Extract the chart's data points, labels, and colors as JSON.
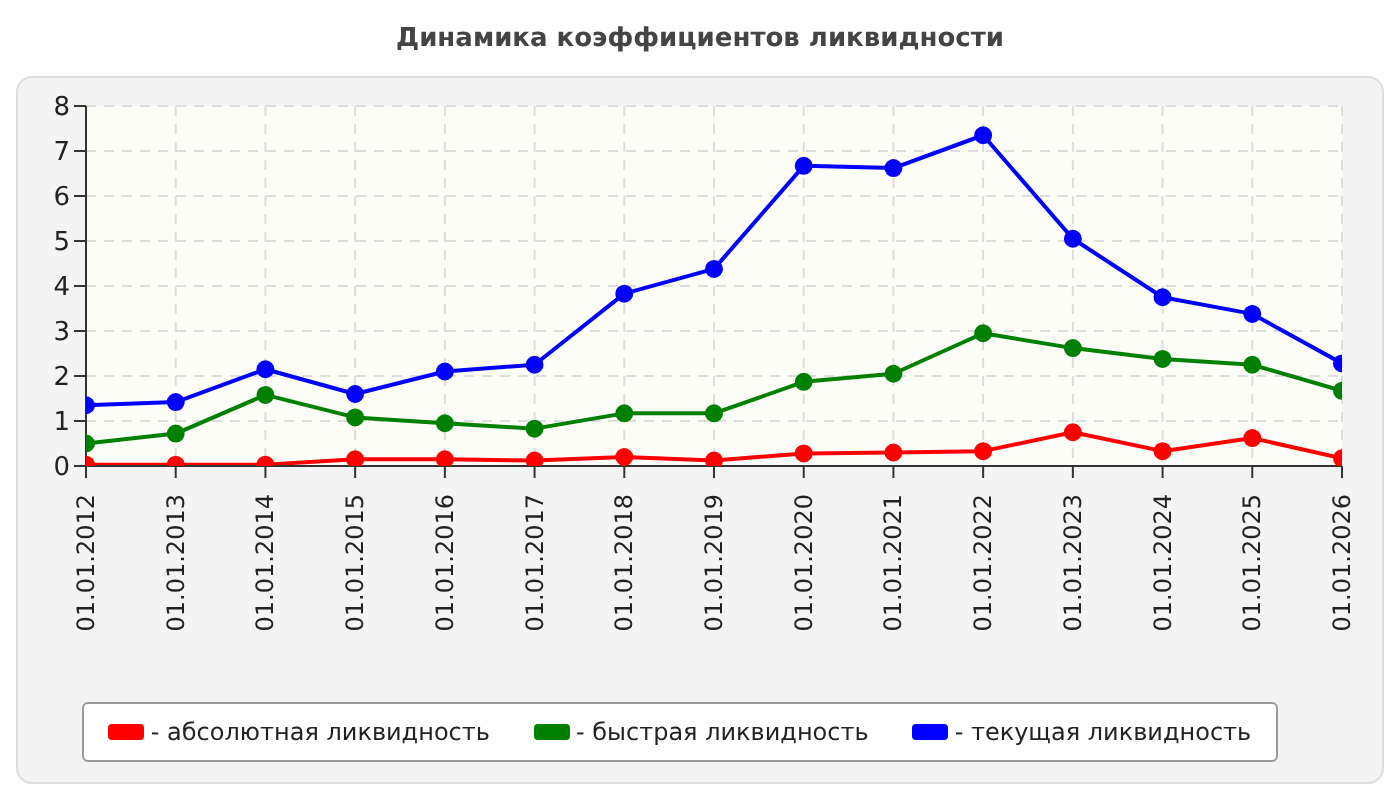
{
  "chart_data": {
    "type": "line",
    "title": "Динамика коэффициентов ликвидности",
    "categories": [
      "01.01.2012",
      "01.01.2013",
      "01.01.2014",
      "01.01.2015",
      "01.01.2016",
      "01.01.2017",
      "01.01.2018",
      "01.01.2019",
      "01.01.2020",
      "01.01.2021",
      "01.01.2022",
      "01.01.2023",
      "01.01.2024",
      "01.01.2025",
      "01.01.2026"
    ],
    "series": [
      {
        "name": "- абсолютная ликвидность",
        "color": "#ff0000",
        "values": [
          0.03,
          0.03,
          0.03,
          0.15,
          0.15,
          0.12,
          0.2,
          0.12,
          0.28,
          0.3,
          0.33,
          0.75,
          0.33,
          0.62,
          0.17
        ]
      },
      {
        "name": "- быстрая ликвидность",
        "color": "#008000",
        "values": [
          0.5,
          0.72,
          1.58,
          1.08,
          0.95,
          0.83,
          1.17,
          1.17,
          1.87,
          2.05,
          2.95,
          2.62,
          2.38,
          2.25,
          1.67
        ]
      },
      {
        "name": "- текущая ликвидность",
        "color": "#0000ff",
        "values": [
          1.35,
          1.42,
          2.15,
          1.6,
          2.1,
          2.25,
          3.83,
          4.38,
          6.67,
          6.62,
          7.35,
          5.05,
          3.75,
          3.38,
          2.28
        ]
      }
    ],
    "ylim": [
      0,
      8
    ],
    "yticks": [
      0,
      1,
      2,
      3,
      4,
      5,
      6,
      7,
      8
    ],
    "grid": true,
    "legend": "bottom",
    "marker": "circle",
    "line_style": "solid"
  }
}
